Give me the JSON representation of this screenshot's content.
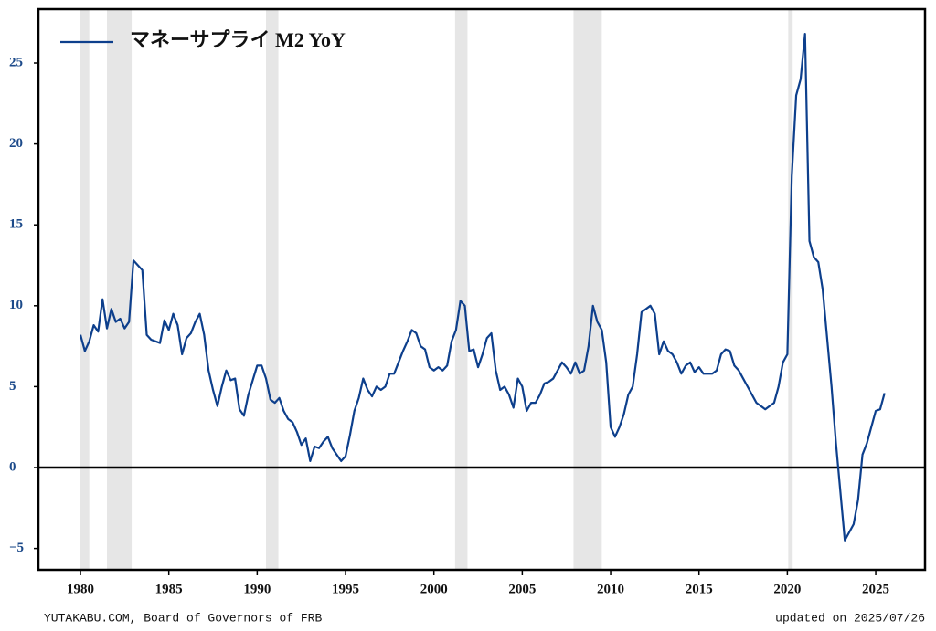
{
  "chart_data": {
    "type": "line",
    "source": "YUTAKABU.COM, Board of Governors of FRB",
    "updated": "updated on 2025/07/26",
    "xlim": [
      1977.62,
      2027.79
    ],
    "ylim": [
      -6.32,
      28.33
    ],
    "xticks": [
      1980,
      1985,
      1990,
      1995,
      2000,
      2005,
      2010,
      2015,
      2020,
      2025
    ],
    "yticks": [
      {
        "value": -5,
        "label": "−5"
      },
      0,
      5,
      10,
      15,
      20,
      25
    ],
    "legend": "upper left",
    "recessions": [
      [
        1980.0,
        1980.5
      ],
      [
        1981.5,
        1982.9
      ],
      [
        1990.5,
        1991.2
      ],
      [
        2001.2,
        2001.9
      ],
      [
        2007.9,
        2009.5
      ],
      [
        2020.05,
        2020.3
      ]
    ],
    "x": [
      1980.0,
      1980.25,
      1980.5,
      1980.75,
      1981.0,
      1981.25,
      1981.5,
      1981.75,
      1982.0,
      1982.25,
      1982.5,
      1982.75,
      1983.0,
      1983.25,
      1983.5,
      1983.75,
      1984.0,
      1984.25,
      1984.5,
      1984.75,
      1985.0,
      1985.25,
      1985.5,
      1985.75,
      1986.0,
      1986.25,
      1986.5,
      1986.75,
      1987.0,
      1987.25,
      1987.5,
      1987.75,
      1988.0,
      1988.25,
      1988.5,
      1988.75,
      1989.0,
      1989.25,
      1989.5,
      1989.75,
      1990.0,
      1990.25,
      1990.5,
      1990.75,
      1991.0,
      1991.25,
      1991.5,
      1991.75,
      1992.0,
      1992.25,
      1992.5,
      1992.75,
      1993.0,
      1993.25,
      1993.5,
      1993.75,
      1994.0,
      1994.25,
      1994.5,
      1994.75,
      1995.0,
      1995.25,
      1995.5,
      1995.75,
      1996.0,
      1996.25,
      1996.5,
      1996.75,
      1997.0,
      1997.25,
      1997.5,
      1997.75,
      1998.0,
      1998.25,
      1998.5,
      1998.75,
      1999.0,
      1999.25,
      1999.5,
      1999.75,
      2000.0,
      2000.25,
      2000.5,
      2000.75,
      2001.0,
      2001.25,
      2001.5,
      2001.75,
      2002.0,
      2002.25,
      2002.5,
      2002.75,
      2003.0,
      2003.25,
      2003.5,
      2003.75,
      2004.0,
      2004.25,
      2004.5,
      2004.75,
      2005.0,
      2005.25,
      2005.5,
      2005.75,
      2006.0,
      2006.25,
      2006.5,
      2006.75,
      2007.0,
      2007.25,
      2007.5,
      2007.75,
      2008.0,
      2008.25,
      2008.5,
      2008.75,
      2009.0,
      2009.25,
      2009.5,
      2009.75,
      2010.0,
      2010.25,
      2010.5,
      2010.75,
      2011.0,
      2011.25,
      2011.5,
      2011.75,
      2012.0,
      2012.25,
      2012.5,
      2012.75,
      2013.0,
      2013.25,
      2013.5,
      2013.75,
      2014.0,
      2014.25,
      2014.5,
      2014.75,
      2015.0,
      2015.25,
      2015.5,
      2015.75,
      2016.0,
      2016.25,
      2016.5,
      2016.75,
      2017.0,
      2017.25,
      2017.5,
      2017.75,
      2018.0,
      2018.25,
      2018.5,
      2018.75,
      2019.0,
      2019.25,
      2019.5,
      2019.75,
      2020.0,
      2020.25,
      2020.5,
      2020.75,
      2021.0,
      2021.25,
      2021.5,
      2021.75,
      2022.0,
      2022.25,
      2022.5,
      2022.75,
      2023.0,
      2023.25,
      2023.5,
      2023.75,
      2024.0,
      2024.25,
      2024.5,
      2024.75,
      2025.0,
      2025.25,
      2025.5
    ],
    "series": [
      {
        "name": "マネーサプライ M2 YoY",
        "color": "#0d3f8c",
        "values": [
          8.2,
          7.2,
          7.8,
          8.8,
          8.4,
          10.4,
          8.6,
          9.8,
          9.0,
          9.2,
          8.6,
          9.0,
          12.8,
          12.5,
          12.2,
          8.2,
          7.9,
          7.8,
          7.7,
          9.1,
          8.5,
          9.5,
          8.8,
          7.0,
          8.0,
          8.3,
          9.0,
          9.5,
          8.2,
          6.0,
          4.8,
          3.8,
          5.0,
          6.0,
          5.4,
          5.5,
          3.6,
          3.2,
          4.5,
          5.4,
          6.3,
          6.3,
          5.5,
          4.2,
          4.0,
          4.3,
          3.5,
          3.0,
          2.8,
          2.2,
          1.4,
          1.8,
          0.4,
          1.3,
          1.2,
          1.6,
          1.9,
          1.2,
          0.8,
          0.4,
          0.7,
          2.0,
          3.5,
          4.3,
          5.5,
          4.8,
          4.4,
          5.0,
          4.8,
          5.0,
          5.8,
          5.8,
          6.5,
          7.2,
          7.8,
          8.5,
          8.3,
          7.5,
          7.3,
          6.2,
          6.0,
          6.2,
          6.0,
          6.3,
          7.8,
          8.5,
          10.3,
          10.0,
          7.2,
          7.3,
          6.2,
          7.0,
          8.0,
          8.3,
          6.0,
          4.8,
          5.0,
          4.5,
          3.7,
          5.5,
          5.0,
          3.5,
          4.0,
          4.0,
          4.5,
          5.2,
          5.3,
          5.5,
          6.0,
          6.5,
          6.2,
          5.8,
          6.5,
          5.8,
          6.0,
          7.5,
          10.0,
          9.0,
          8.5,
          6.5,
          2.5,
          1.9,
          2.5,
          3.3,
          4.5,
          5.0,
          7.0,
          9.6,
          9.8,
          10.0,
          9.5,
          7.0,
          7.8,
          7.2,
          7.0,
          6.5,
          5.8,
          6.3,
          6.5,
          5.9,
          6.2,
          5.8,
          5.8,
          5.8,
          6.0,
          7.0,
          7.3,
          7.2,
          6.3,
          6.0,
          5.5,
          5.0,
          4.5,
          4.0,
          3.8,
          3.6,
          3.8,
          4.0,
          5.0,
          6.5,
          7.0,
          18.0,
          23.0,
          24.0,
          26.8,
          14.0,
          13.0,
          12.7,
          11.0,
          8.0,
          5.0,
          1.5,
          -1.5,
          -4.5,
          -4.0,
          -3.5,
          -2.0,
          0.8,
          1.5,
          2.5,
          3.5,
          3.6,
          4.6
        ]
      }
    ]
  }
}
